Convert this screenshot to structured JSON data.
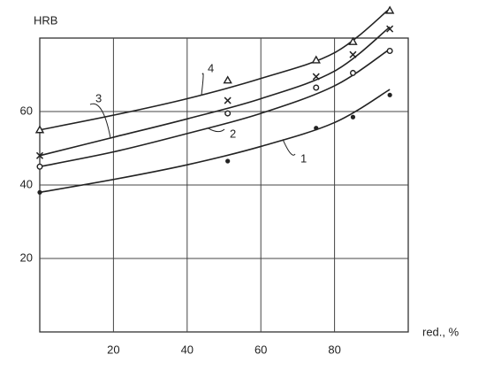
{
  "chart_data": {
    "type": "line",
    "y_label": "HRB",
    "x_label": "red., %",
    "xlim": [
      0,
      100
    ],
    "ylim": [
      0,
      80
    ],
    "xticks": [
      20,
      40,
      60,
      80
    ],
    "yticks": [
      20,
      40,
      60
    ],
    "grid": true,
    "series": [
      {
        "name": "1",
        "color": "#222222",
        "marker": "dot",
        "x": [
          0,
          51,
          75,
          85,
          95
        ],
        "values": [
          38,
          46.5,
          55.5,
          58.5,
          64.5
        ],
        "curve_x": [
          0,
          20,
          40,
          60,
          80,
          95
        ],
        "curve_values": [
          38,
          41.5,
          45.5,
          50.5,
          57,
          66
        ]
      },
      {
        "name": "2",
        "color": "#222222",
        "marker": "circle",
        "x": [
          0,
          51,
          75,
          85,
          95
        ],
        "values": [
          45,
          59.5,
          66.5,
          70.5,
          76.5
        ],
        "curve_x": [
          0,
          20,
          40,
          60,
          80,
          95
        ],
        "curve_values": [
          45,
          49,
          54,
          59.5,
          67,
          77
        ]
      },
      {
        "name": "3",
        "color": "#222222",
        "marker": "cross",
        "x": [
          0,
          51,
          75,
          85,
          95
        ],
        "values": [
          48,
          63,
          69.5,
          75.5,
          82.5
        ],
        "curve_x": [
          0,
          20,
          40,
          60,
          80,
          95
        ],
        "curve_values": [
          48,
          53,
          58,
          63.5,
          71,
          83
        ]
      },
      {
        "name": "4",
        "color": "#222222",
        "marker": "triangle",
        "x": [
          0,
          51,
          75,
          85,
          95
        ],
        "values": [
          55,
          68.5,
          74,
          79,
          87.5
        ],
        "curve_x": [
          0,
          20,
          40,
          60,
          80,
          95
        ],
        "curve_values": [
          55,
          59,
          63.5,
          69,
          76,
          88
        ]
      }
    ]
  }
}
